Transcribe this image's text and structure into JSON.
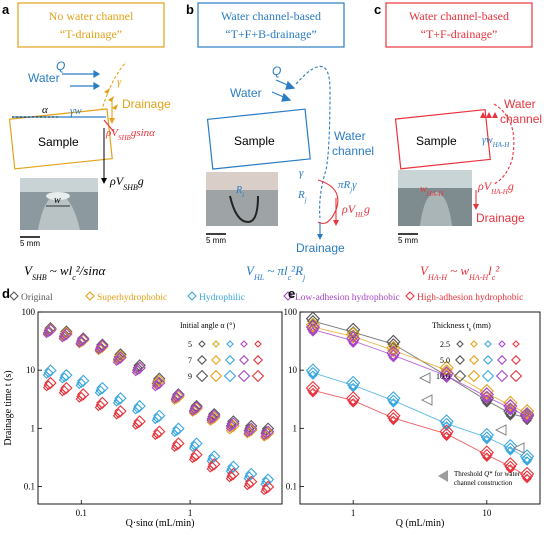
{
  "panel_a": {
    "letter": "a",
    "title_line1": "No water channel",
    "title_line2": "“T-drainage”",
    "water": "Water",
    "Q": "Q",
    "gamma": "γ",
    "gamma_w": "γw",
    "alpha": "α",
    "drainage": "Drainage",
    "sample": "Sample",
    "force": "ρV",
    "force_sub": "SHB",
    "force_tail": "gsinα",
    "weight": "ρV",
    "weight_sub": "SHB",
    "weight_tail": "g",
    "w": "w",
    "scale": "5 mm",
    "eq_lhs": "V",
    "eq_lhs_sub": "SHB",
    "eq_rhs": "~ wl",
    "eq_rhs_sub": "c",
    "eq_rhs_tail": "²/sinα"
  },
  "panel_b": {
    "letter": "b",
    "title_line1": "Water channel-based",
    "title_line2": "“T+F+B-drainage”",
    "Q": "Q",
    "water": "Water",
    "sample": "Sample",
    "water_channel_1": "Water",
    "water_channel_2": "channel",
    "gamma": "γ",
    "Rj": "R",
    "Rj_sub": "j",
    "pressure": "πR",
    "pressure_sub": "j",
    "pressure_tail": "γ",
    "force": "ρV",
    "force_sub": "HL",
    "force_tail": "g",
    "Ri": "R",
    "Ri_sub": "i",
    "scale": "5 mm",
    "drainage": "Drainage",
    "eq_lhs": "V",
    "eq_lhs_sub": "HL",
    "eq_rhs": "~ πl",
    "eq_rhs_sub": "c",
    "eq_rhs_tail": "²R",
    "eq_rhs_sub2": "j"
  },
  "panel_c": {
    "letter": "c",
    "title_line1": "Water channel-based",
    "title_line2": "“T+F-drainage”",
    "sample": "Sample",
    "water_channel_1": "Water",
    "water_channel_2": "channel",
    "gamma_w": "γw",
    "gamma_w_sub": "HA-H",
    "w_label": "w",
    "w_sub": "HA-H",
    "force": "ρV",
    "force_sub": "HA-H",
    "force_tail": "g",
    "drainage": "Drainage",
    "scale": "5 mm",
    "eq_lhs": "V",
    "eq_lhs_sub": "HA-H",
    "eq_rhs": "~ w",
    "eq_rhs_sub": "HA-H",
    "eq_rhs_tail": "l",
    "eq_rhs_sub2": "c",
    "eq_rhs_tail2": "²"
  },
  "legend": {
    "items": [
      {
        "label": "Original",
        "color": "#555555"
      },
      {
        "label": "Superhydrophobic",
        "color": "#e3a21a"
      },
      {
        "label": "Hydrophilic",
        "color": "#3aa7e0"
      },
      {
        "label": "Low-adhesion hydrophobic",
        "color": "#a845c9"
      },
      {
        "label": "High-adhesion hydrophobic",
        "color": "#e8343d"
      }
    ]
  },
  "chart_data": [
    {
      "panel": "d",
      "type": "scatter",
      "xlabel": "Q·sinα (mL/min)",
      "ylabel": "Drainage time t (s)",
      "xscale": "log",
      "yscale": "log",
      "xlim": [
        0.04,
        7
      ],
      "ylim": [
        0.05,
        100
      ],
      "xticks": [
        "0.1",
        "1"
      ],
      "yticks": [
        "0.1",
        "1",
        "10",
        "100"
      ],
      "inset_title": "Initial angle α (°)",
      "inset_rows": [
        "5",
        "7",
        "9"
      ],
      "series": [
        {
          "name": "Original",
          "color": "#555555",
          "x": [
            0.05,
            0.07,
            0.1,
            0.15,
            0.22,
            0.33,
            0.5,
            0.75,
            1.1,
            1.6,
            2.4,
            3.5,
            5
          ],
          "y": [
            48,
            42,
            32,
            25,
            17,
            11,
            6.5,
            3.5,
            2.2,
            1.6,
            1.2,
            1.0,
            0.9
          ]
        },
        {
          "name": "Superhydrophobic",
          "color": "#e3a21a",
          "x": [
            0.05,
            0.07,
            0.1,
            0.15,
            0.22,
            0.33,
            0.5,
            0.75,
            1.1,
            1.6,
            2.4,
            3.5,
            5
          ],
          "y": [
            46,
            40,
            30,
            23,
            16,
            10,
            6,
            3.2,
            2.0,
            1.4,
            1.0,
            0.85,
            0.75
          ]
        },
        {
          "name": "Hydrophilic",
          "color": "#3aa7e0",
          "x": [
            0.05,
            0.07,
            0.1,
            0.15,
            0.22,
            0.33,
            0.5,
            0.75,
            1.1,
            1.6,
            2.4,
            3.5,
            5
          ],
          "y": [
            9,
            7.5,
            6,
            4.5,
            3,
            2.2,
            1.5,
            0.9,
            0.5,
            0.3,
            0.2,
            0.15,
            0.12
          ]
        },
        {
          "name": "Low-adhesion hydrophobic",
          "color": "#a845c9",
          "x": [
            0.05,
            0.07,
            0.1,
            0.15,
            0.22,
            0.33,
            0.5,
            0.75,
            1.1,
            1.6,
            2.4,
            3.5,
            5
          ],
          "y": [
            45,
            38,
            31,
            24,
            15,
            10,
            5.5,
            3.4,
            2.1,
            1.5,
            1.1,
            0.9,
            0.8
          ]
        },
        {
          "name": "High-adhesion hydrophobic",
          "color": "#e8343d",
          "x": [
            0.05,
            0.07,
            0.1,
            0.15,
            0.22,
            0.33,
            0.5,
            0.75,
            1.1,
            1.6,
            2.4,
            3.5,
            5
          ],
          "y": [
            5.5,
            4.5,
            3.5,
            2.5,
            1.8,
            1.2,
            0.8,
            0.5,
            0.32,
            0.22,
            0.15,
            0.11,
            0.09
          ]
        }
      ]
    },
    {
      "panel": "e",
      "type": "line",
      "xlabel": "Q (mL/min)",
      "xscale": "log",
      "yscale": "log",
      "xlim": [
        0.4,
        25
      ],
      "ylim": [
        0.05,
        100
      ],
      "xticks": [
        "1",
        "10"
      ],
      "yticks": [
        "0.1",
        "1",
        "10",
        "100"
      ],
      "inset_title": "Thickness t",
      "inset_title_sub": "s",
      "inset_title_unit": "(mm)",
      "inset_rows": [
        "2.5",
        "5.0",
        "10.0"
      ],
      "annotation": "Threshold Q* for water channel construction",
      "series": [
        {
          "name": "Original",
          "color": "#555555",
          "x": [
            0.5,
            1,
            2,
            5,
            10,
            15,
            20
          ],
          "y": [
            70,
            45,
            28,
            8,
            3,
            1.8,
            1.5
          ]
        },
        {
          "name": "Superhydrophobic",
          "color": "#e3a21a",
          "x": [
            0.5,
            1,
            2,
            5,
            10,
            15,
            20
          ],
          "y": [
            55,
            38,
            22,
            10,
            4,
            2.5,
            1.8
          ]
        },
        {
          "name": "Hydrophilic",
          "color": "#3aa7e0",
          "x": [
            0.5,
            1,
            2,
            5,
            10,
            15,
            20
          ],
          "y": [
            9,
            5.5,
            3,
            1.2,
            0.7,
            0.45,
            0.3
          ]
        },
        {
          "name": "Low-adhesion hydrophobic",
          "color": "#a845c9",
          "x": [
            0.5,
            1,
            2,
            5,
            10,
            15,
            20
          ],
          "y": [
            50,
            32,
            18,
            8,
            3.5,
            2.2,
            1.6
          ]
        },
        {
          "name": "High-adhesion hydrophobic",
          "color": "#e8343d",
          "x": [
            0.5,
            1,
            2,
            5,
            10,
            15,
            20
          ],
          "y": [
            4.5,
            3,
            1.5,
            0.8,
            0.35,
            0.22,
            0.15
          ]
        }
      ]
    }
  ]
}
